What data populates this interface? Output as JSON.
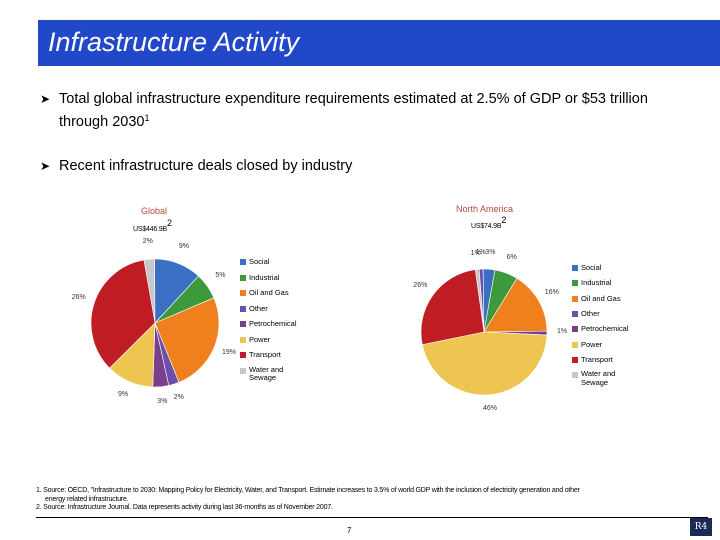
{
  "page": {
    "title": "Infrastructure Activity",
    "bullets": [
      {
        "text": "Total global infrastructure expenditure requirements estimated at 2.5% of GDP or $53 trillion through 2030",
        "sup": "1"
      },
      {
        "text": "Recent infrastructure deals closed by industry",
        "sup": ""
      }
    ],
    "footnotes": [
      "1. Source: OECD, \"Infrastructure to 2030: Mapping Policy for Electricity, Water, and Transport. Estimate increases to 3.5% of world GDP with the inclusion of electricity generation and other",
      "energy related infrastructure.",
      "2. Source: Infrastructure Journal. Data represents activity during last 36-months as of November 2007."
    ],
    "page_number": "7",
    "logo_text": "R4"
  },
  "colors": {
    "Social": "#3a6fc4",
    "Industrial": "#3c9a3c",
    "Oil and Gas": "#f07f1e",
    "Other": "#6b4fa8",
    "Petrochemical": "#7a3f8c",
    "Power": "#efc552",
    "Transport": "#c01c24",
    "Water and Sewage": "#c8c8c8",
    "title_bar": "#2148c8"
  },
  "chart_data": [
    {
      "type": "pie",
      "title": "Global",
      "subtitle": "US$446.9B",
      "subtitle_sup": "2",
      "legend_position": "right",
      "slices": [
        {
          "label": "Social",
          "value": 9,
          "label_text": "9%"
        },
        {
          "label": "Industrial",
          "value": 5,
          "label_text": "5%"
        },
        {
          "label": "Oil and Gas",
          "value": 19,
          "label_text": "19%"
        },
        {
          "label": "Other",
          "value": 2,
          "label_text": "2%"
        },
        {
          "label": "Petrochemical",
          "value": 3,
          "label_text": "3%"
        },
        {
          "label": "Power",
          "value": 9,
          "label_text": "9%"
        },
        {
          "label": "Transport",
          "value": 26,
          "label_text": "26%"
        },
        {
          "label": "Water and Sewage",
          "value": 2,
          "label_text": "2%"
        }
      ],
      "legend": [
        "Social",
        "Industrial",
        "Oil and Gas",
        "Other",
        "Petrochemical",
        "Power",
        "Transport",
        "Water and Sewage"
      ]
    },
    {
      "type": "pie",
      "title": "North America",
      "subtitle": "US$74.9B",
      "subtitle_sup": "2",
      "legend_position": "right",
      "slices": [
        {
          "label": "Social",
          "value": 3,
          "label_text": "3%"
        },
        {
          "label": "Industrial",
          "value": 6,
          "label_text": "6%"
        },
        {
          "label": "Oil and Gas",
          "value": 16,
          "label_text": "16%"
        },
        {
          "label": "Other",
          "value": 1,
          "label_text": "1%"
        },
        {
          "label": "Petrochemical",
          "value": 1,
          "label_text": "1%"
        },
        {
          "label": "Power",
          "value": 46,
          "label_text": "46%"
        },
        {
          "label": "Transport",
          "value": 26,
          "label_text": "26%"
        },
        {
          "label": "Water and Sewage",
          "value": 1,
          "label_text": "1%"
        }
      ],
      "legend": [
        "Social",
        "Industrial",
        "Oil and Gas",
        "Other",
        "Petrochemical",
        "Power",
        "Transport",
        "Water and Sewage"
      ]
    }
  ]
}
